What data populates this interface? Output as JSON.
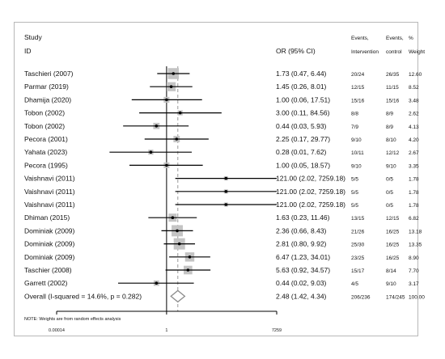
{
  "chart_data": {
    "type": "forest",
    "header": {
      "study_line1": "Study",
      "study_line2": "ID",
      "or_label": "OR (95% CI)",
      "events_label": "Events,",
      "intervention_label": "Intervention",
      "events_label2": "Events,",
      "control_label": "control",
      "pct_label": "%",
      "weight_label": "Weight"
    },
    "x_scale": "log",
    "x_range": [
      0.00014,
      7259
    ],
    "x_ticks": [
      {
        "value": 0.00014,
        "label": "0.00014"
      },
      {
        "value": 1,
        "label": "1"
      },
      {
        "value": 7259,
        "label": "7259"
      }
    ],
    "null_line": 1,
    "rows": [
      {
        "study": "Taschieri (2007)",
        "or": 1.73,
        "lo": 0.47,
        "hi": 6.44,
        "or_text": "1.73 (0.47, 6.44)",
        "intervention": "20/24",
        "control": "26/35",
        "weight": 12.6,
        "weight_text": "12.60"
      },
      {
        "study": "Parmar (2019)",
        "or": 1.45,
        "lo": 0.26,
        "hi": 8.01,
        "or_text": "1.45 (0.26, 8.01)",
        "intervention": "12/15",
        "control": "11/15",
        "weight": 8.52,
        "weight_text": "8.52"
      },
      {
        "study": "Dhamija (2020)",
        "or": 1.0,
        "lo": 0.06,
        "hi": 17.51,
        "or_text": "1.00 (0.06, 17.51)",
        "intervention": "15/16",
        "control": "15/16",
        "weight": 3.48,
        "weight_text": "3.48"
      },
      {
        "study": "Tobon (2002)",
        "or": 3.0,
        "lo": 0.11,
        "hi": 84.56,
        "or_text": "3.00 (0.11, 84.56)",
        "intervention": "8/8",
        "control": "8/9",
        "weight": 2.62,
        "weight_text": "2.62"
      },
      {
        "study": "Tobon (2002)",
        "or": 0.44,
        "lo": 0.03,
        "hi": 5.93,
        "or_text": "0.44 (0.03, 5.93)",
        "intervention": "7/9",
        "control": "8/9",
        "weight": 4.13,
        "weight_text": "4.13"
      },
      {
        "study": "Pecora (2001)",
        "or": 2.25,
        "lo": 0.17,
        "hi": 29.77,
        "or_text": "2.25 (0.17, 29.77)",
        "intervention": "9/10",
        "control": "8/10",
        "weight": 4.2,
        "weight_text": "4.20"
      },
      {
        "study": "Yahata (2023)",
        "or": 0.28,
        "lo": 0.01,
        "hi": 7.62,
        "or_text": "0.28 (0.01, 7.62)",
        "intervention": "10/11",
        "control": "12/12",
        "weight": 2.67,
        "weight_text": "2.67"
      },
      {
        "study": "Pecora (1995)",
        "or": 1.0,
        "lo": 0.05,
        "hi": 18.57,
        "or_text": "1.00 (0.05, 18.57)",
        "intervention": "9/10",
        "control": "9/10",
        "weight": 3.35,
        "weight_text": "3.35"
      },
      {
        "study": "Vaishnavi (2011)",
        "or": 121.0,
        "lo": 2.02,
        "hi": 7259.18,
        "or_text": "121.00 (2.02, 7259.18)",
        "intervention": "5/5",
        "control": "0/5",
        "weight": 1.78,
        "weight_text": "1.78"
      },
      {
        "study": "Vaishnavi (2011)",
        "or": 121.0,
        "lo": 2.02,
        "hi": 7259.18,
        "or_text": "121.00 (2.02, 7259.18)",
        "intervention": "5/5",
        "control": "0/5",
        "weight": 1.78,
        "weight_text": "1.78"
      },
      {
        "study": "Vaishnavi (2011)",
        "or": 121.0,
        "lo": 2.02,
        "hi": 7259.18,
        "or_text": "121.00 (2.02, 7259.18)",
        "intervention": "5/5",
        "control": "0/5",
        "weight": 1.78,
        "weight_text": "1.78"
      },
      {
        "study": "Dhiman (2015)",
        "or": 1.63,
        "lo": 0.23,
        "hi": 11.46,
        "or_text": "1.63 (0.23, 11.46)",
        "intervention": "13/15",
        "control": "12/15",
        "weight": 6.82,
        "weight_text": "6.82"
      },
      {
        "study": "Dominiak (2009)",
        "or": 2.36,
        "lo": 0.66,
        "hi": 8.43,
        "or_text": "2.36 (0.66, 8.43)",
        "intervention": "21/26",
        "control": "16/25",
        "weight": 13.18,
        "weight_text": "13.18"
      },
      {
        "study": "Dominiak (2009)",
        "or": 2.81,
        "lo": 0.8,
        "hi": 9.92,
        "or_text": "2.81 (0.80, 9.92)",
        "intervention": "25/30",
        "control": "16/25",
        "weight": 13.35,
        "weight_text": "13.35"
      },
      {
        "study": "Dominiak (2009)",
        "or": 6.47,
        "lo": 1.23,
        "hi": 34.01,
        "or_text": "6.47 (1.23, 34.01)",
        "intervention": "23/25",
        "control": "16/25",
        "weight": 8.9,
        "weight_text": "8.90"
      },
      {
        "study": "Taschier (2008)",
        "or": 5.63,
        "lo": 0.92,
        "hi": 34.57,
        "or_text": "5.63 (0.92, 34.57)",
        "intervention": "15/17",
        "control": "8/14",
        "weight": 7.7,
        "weight_text": "7.70"
      },
      {
        "study": "Garrett (2002)",
        "or": 0.44,
        "lo": 0.02,
        "hi": 9.03,
        "or_text": "0.44 (0.02, 9.03)",
        "intervention": "4/5",
        "control": "9/10",
        "weight": 3.17,
        "weight_text": "3.17"
      }
    ],
    "overall": {
      "label": "Overall  (I-squared = 14.6%, p = 0.282)",
      "or": 2.48,
      "lo": 1.42,
      "hi": 4.34,
      "or_text": "2.48 (1.42, 4.34)",
      "intervention": "206/236",
      "control": "174/245",
      "weight_text": "100.00"
    },
    "note": "NOTE: Weights are from random effects analysis"
  },
  "colors": {
    "square": "#c4c4c4",
    "point": "#000000",
    "diamond": "#8c8c8c",
    "dashed": "#9a9a9a"
  }
}
